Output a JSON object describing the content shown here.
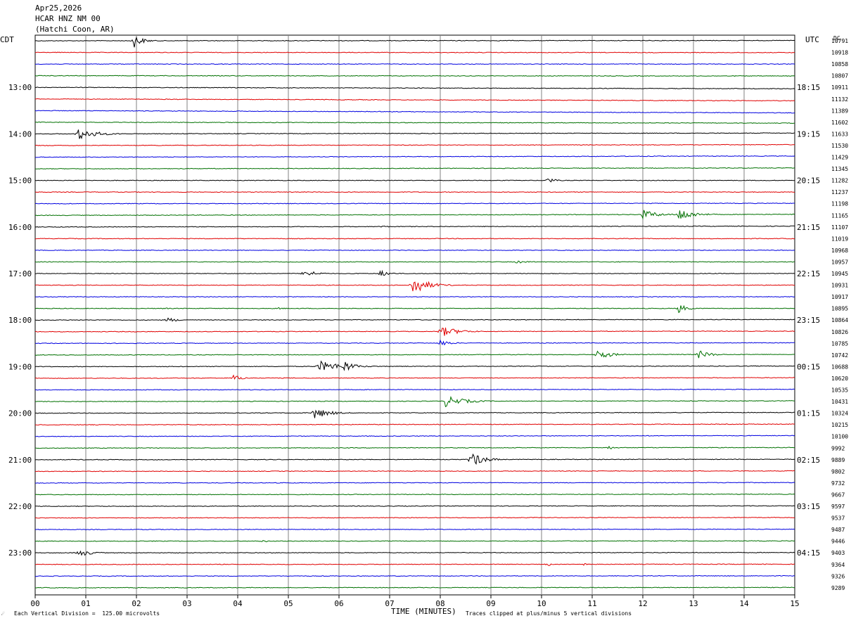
{
  "header": {
    "date": "Apr25,2026",
    "station": "HCAR HNZ NM 00",
    "location": "(Hatchi Coon, AR)"
  },
  "left_tz": "CDT",
  "right_tz": "UTC",
  "dc_label": "DC",
  "footer": {
    "scale_note": "Each Vertical Division =  125.00 microvolts",
    "xlabel": "TIME (MINUTES)",
    "clip_note": "Traces clipped at plus/minus 5 vertical divisions",
    "logo": "☄"
  },
  "chart_data": {
    "type": "line",
    "title": "HCAR HNZ NM 00",
    "xlabel": "TIME (MINUTES)",
    "xlim": [
      0,
      15
    ],
    "x_ticks": [
      "00",
      "01",
      "02",
      "03",
      "04",
      "05",
      "06",
      "07",
      "08",
      "09",
      "10",
      "11",
      "12",
      "13",
      "14",
      "15"
    ],
    "trace_colors": [
      "#000000",
      "#e00000",
      "#0000e0",
      "#007000"
    ],
    "traces_per_hour": 4,
    "trace_minutes": 15,
    "left_time_labels": [
      {
        "trace": 4,
        "label": "13:00"
      },
      {
        "trace": 8,
        "label": "14:00"
      },
      {
        "trace": 12,
        "label": "15:00"
      },
      {
        "trace": 16,
        "label": "16:00"
      },
      {
        "trace": 20,
        "label": "17:00"
      },
      {
        "trace": 24,
        "label": "18:00"
      },
      {
        "trace": 28,
        "label": "19:00"
      },
      {
        "trace": 32,
        "label": "20:00"
      },
      {
        "trace": 36,
        "label": "21:00"
      },
      {
        "trace": 40,
        "label": "22:00"
      },
      {
        "trace": 44,
        "label": "23:00"
      }
    ],
    "right_time_labels": [
      {
        "trace": 4,
        "label": "18:15"
      },
      {
        "trace": 8,
        "label": "19:15"
      },
      {
        "trace": 12,
        "label": "20:15"
      },
      {
        "trace": 16,
        "label": "21:15"
      },
      {
        "trace": 20,
        "label": "22:15"
      },
      {
        "trace": 24,
        "label": "23:15"
      },
      {
        "trace": 28,
        "label": "00:15"
      },
      {
        "trace": 32,
        "label": "01:15"
      },
      {
        "trace": 36,
        "label": "02:15"
      },
      {
        "trace": 40,
        "label": "03:15"
      },
      {
        "trace": 44,
        "label": "04:15"
      }
    ],
    "dc_offsets": [
      "10791",
      "10918",
      "10858",
      "10807",
      "10911",
      "11132",
      "11389",
      "11602",
      "11633",
      "11530",
      "11429",
      "11345",
      "11282",
      "11237",
      "11198",
      "11165",
      "11107",
      "11019",
      "10968",
      "10957",
      "10945",
      "10931",
      "10917",
      "10895",
      "10864",
      "10826",
      "10785",
      "10742",
      "10688",
      "10620",
      "10535",
      "10431",
      "10324",
      "10215",
      "10100",
      "9992",
      "9889",
      "9802",
      "9732",
      "9667",
      "9597",
      "9537",
      "9487",
      "9446",
      "9403",
      "9364",
      "9326",
      "9289"
    ],
    "drifts": [
      -0.2,
      0.1,
      0,
      0.2,
      1.0,
      1.3,
      1.6,
      0.6,
      -0.6,
      -0.6,
      -0.8,
      -0.6,
      0,
      0,
      -0.3,
      -0.7,
      -0.6,
      0,
      0,
      0,
      0,
      0,
      0,
      0,
      -0.4,
      -0.4,
      -0.4,
      -0.4,
      -0.4,
      -0.4,
      -0.4,
      -0.5,
      -0.5,
      -0.5,
      -0.6,
      -0.4,
      -0.3,
      -0.3,
      -0.3,
      -0.3,
      -0.3,
      -0.3,
      -0.2,
      -0.2,
      -0.2,
      -0.2,
      -0.2,
      -0.2
    ],
    "events": [
      {
        "trace": 0,
        "minute": 1.95,
        "amp": 10,
        "dur": 0.35
      },
      {
        "trace": 8,
        "minute": 0.85,
        "amp": 9,
        "dur": 0.7
      },
      {
        "trace": 12,
        "minute": 10.1,
        "amp": 5,
        "dur": 0.3
      },
      {
        "trace": 15,
        "minute": 12.0,
        "amp": 7,
        "dur": 0.6
      },
      {
        "trace": 15,
        "minute": 12.7,
        "amp": 10,
        "dur": 0.6
      },
      {
        "trace": 16,
        "minute": 6.8,
        "amp": 2,
        "dur": 0.3
      },
      {
        "trace": 19,
        "minute": 9.5,
        "amp": 2,
        "dur": 0.6
      },
      {
        "trace": 20,
        "minute": 5.3,
        "amp": 6,
        "dur": 0.5
      },
      {
        "trace": 20,
        "minute": 6.8,
        "amp": 5,
        "dur": 0.4
      },
      {
        "trace": 21,
        "minute": 7.45,
        "amp": 14,
        "dur": 0.6
      },
      {
        "trace": 23,
        "minute": 12.7,
        "amp": 7,
        "dur": 0.35
      },
      {
        "trace": 23,
        "minute": 2.5,
        "amp": 1.5,
        "dur": 0.4
      },
      {
        "trace": 23,
        "minute": 4.8,
        "amp": 1.5,
        "dur": 0.3
      },
      {
        "trace": 24,
        "minute": 2.6,
        "amp": 4,
        "dur": 0.4
      },
      {
        "trace": 25,
        "minute": 8.0,
        "amp": 8,
        "dur": 0.7
      },
      {
        "trace": 26,
        "minute": 8.0,
        "amp": 5,
        "dur": 0.4
      },
      {
        "trace": 27,
        "minute": 11.1,
        "amp": 8,
        "dur": 0.5
      },
      {
        "trace": 27,
        "minute": 13.1,
        "amp": 6,
        "dur": 0.5
      },
      {
        "trace": 28,
        "minute": 5.6,
        "amp": 8,
        "dur": 1.0
      },
      {
        "trace": 28,
        "minute": 6.1,
        "amp": 9,
        "dur": 0.4
      },
      {
        "trace": 29,
        "minute": 3.9,
        "amp": 5,
        "dur": 0.4
      },
      {
        "trace": 31,
        "minute": 8.1,
        "amp": 8,
        "dur": 0.8
      },
      {
        "trace": 32,
        "minute": 5.5,
        "amp": 9,
        "dur": 0.6
      },
      {
        "trace": 35,
        "minute": 11.3,
        "amp": 3,
        "dur": 0.3
      },
      {
        "trace": 36,
        "minute": 8.6,
        "amp": 12,
        "dur": 0.5
      },
      {
        "trace": 43,
        "minute": 4.5,
        "amp": 3,
        "dur": 0.15
      },
      {
        "trace": 44,
        "minute": 0.85,
        "amp": 6,
        "dur": 0.5
      },
      {
        "trace": 45,
        "minute": 10.1,
        "amp": 4,
        "dur": 0.15
      },
      {
        "trace": 45,
        "minute": 10.8,
        "amp": 2,
        "dur": 0.3
      }
    ]
  }
}
